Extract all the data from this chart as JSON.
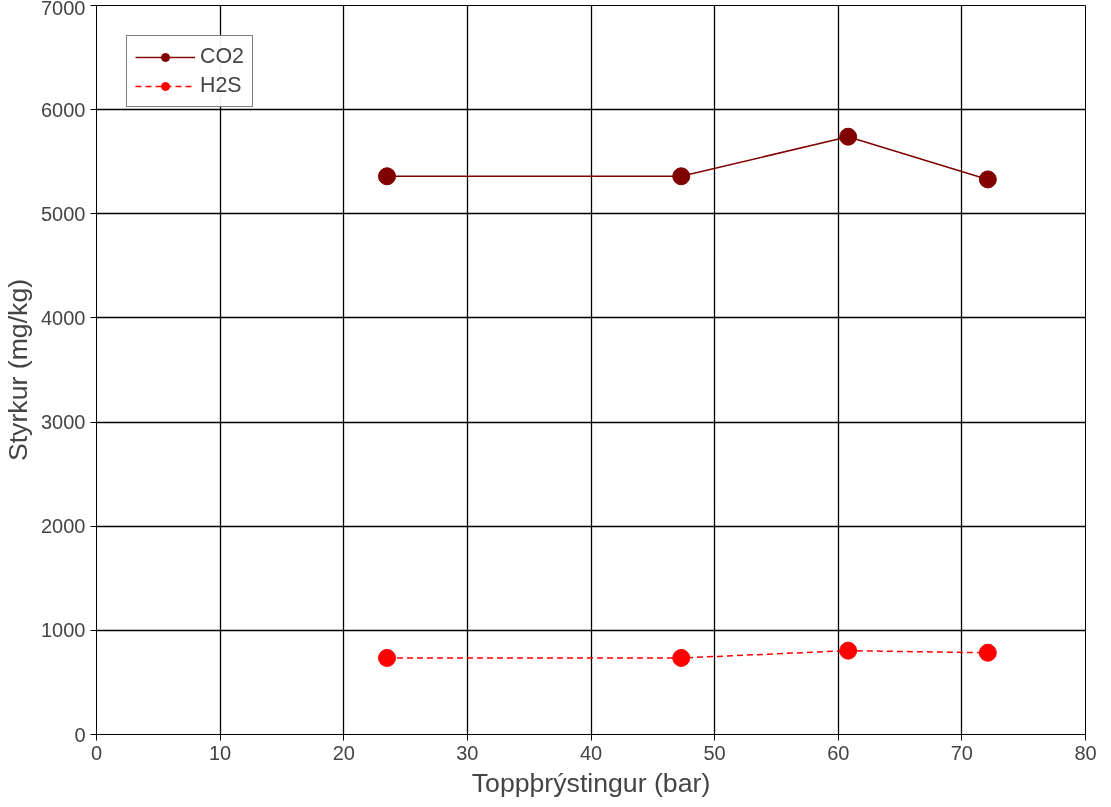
{
  "chart_data": {
    "type": "line",
    "xlabel": "Toppþrýstingur (bar)",
    "ylabel": "Styrkur (mg/kg)",
    "x": [
      23.5,
      47.3,
      60.8,
      72.1
    ],
    "series": [
      {
        "name": "CO2",
        "color": "#800000",
        "values": [
          5360,
          5360,
          5740,
          5330
        ],
        "line_style": "solid"
      },
      {
        "name": "H2S",
        "color": "#ff0000",
        "values": [
          735,
          735,
          805,
          785
        ],
        "line_style": "dashed"
      }
    ],
    "xlim": [
      0,
      80
    ],
    "xticks": [
      0,
      10,
      20,
      30,
      40,
      50,
      60,
      70,
      80
    ],
    "ylim": [
      0,
      7000
    ],
    "yticks": [
      0,
      1000,
      2000,
      3000,
      4000,
      5000,
      6000,
      7000
    ],
    "grid": true,
    "legend": "top left",
    "marker": "circle"
  }
}
